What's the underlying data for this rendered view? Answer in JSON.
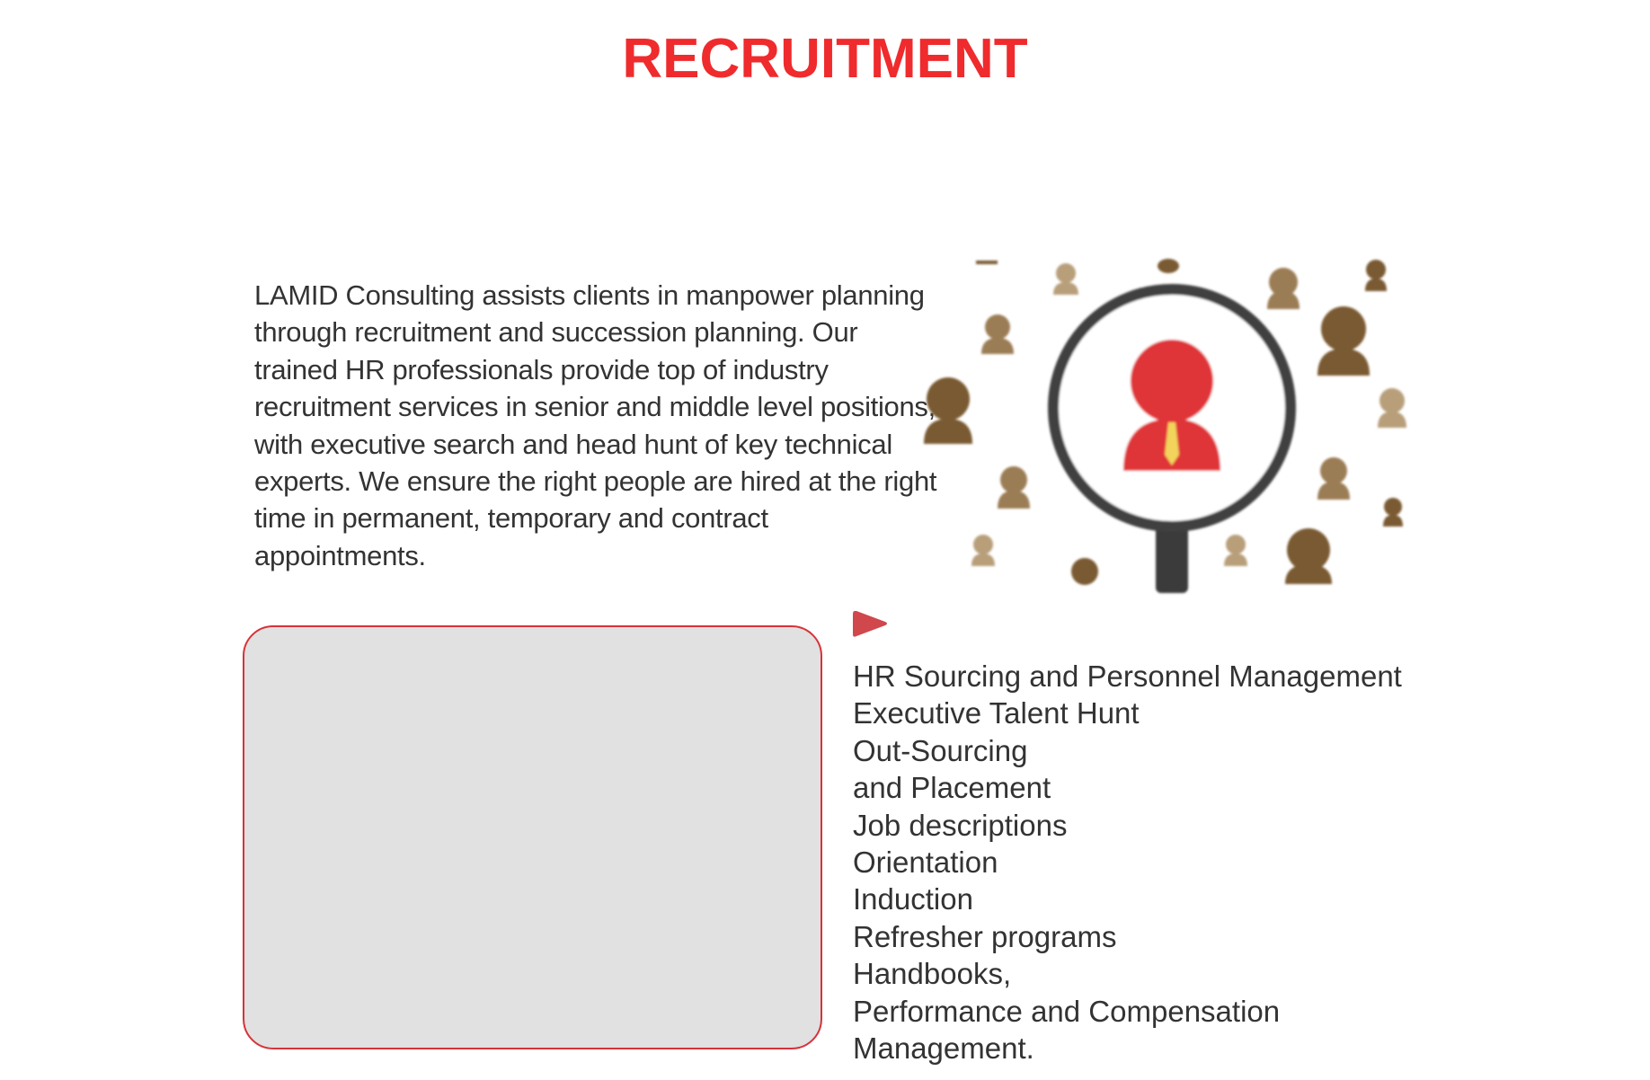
{
  "page": {
    "title": "RECRUITMENT",
    "accent_color": "#ef2b2d"
  },
  "intro": {
    "text": "LAMID Consulting assists clients in manpower planning through recruitment and succession planning. Our trained HR professionals provide top of industry recruitment services in senior and middle level positions, with executive search and head hunt of key technical experts. We ensure the right people are hired at the right time in permanent, temporary and contract appointments."
  },
  "illustration": {
    "icon": "magnifying-glass-people-icon",
    "highlight_color": "#e03438",
    "people_color": "#7a5a32"
  },
  "media": {
    "icon": "play-icon",
    "box_color": "#e1e1e1",
    "border_color": "#d6333a"
  },
  "services": {
    "items": [
      "HR Sourcing and Personnel Management",
      "Executive Talent Hunt",
      "Out-Sourcing",
      "and Placement",
      "Job descriptions",
      "Orientation",
      "Induction",
      "Refresher programs",
      "Handbooks,",
      "Performance and Compensation",
      "Management."
    ]
  }
}
